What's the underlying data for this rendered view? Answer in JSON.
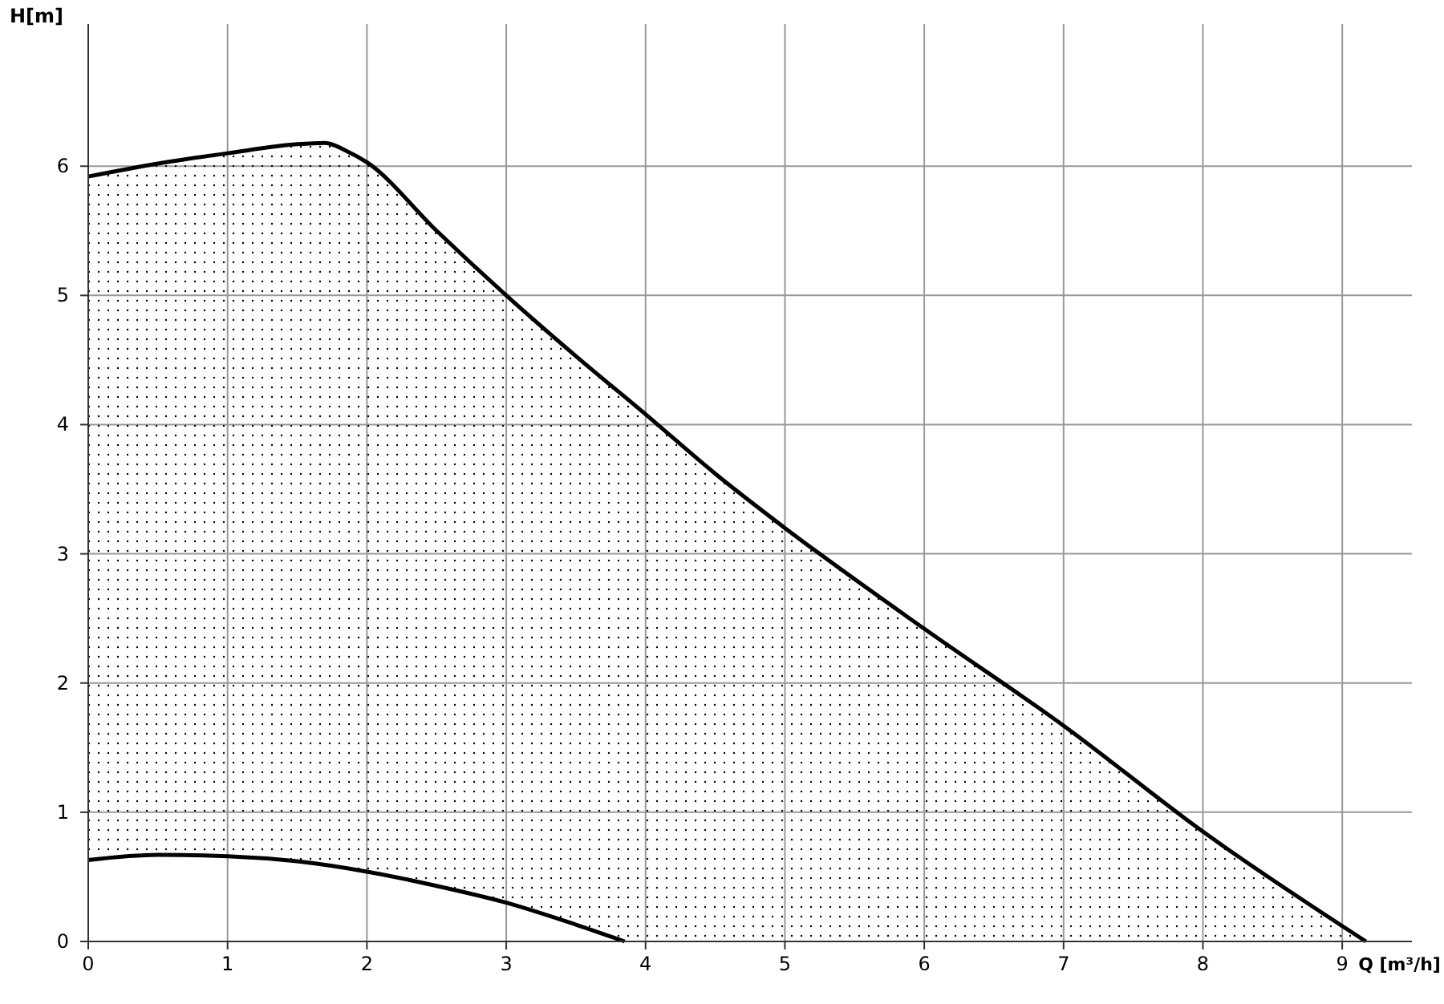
{
  "chart_data": {
    "type": "line",
    "xlabel": "Q [m³/h]",
    "ylabel": "H[m]",
    "xlim": [
      0,
      9.5
    ],
    "ylim": [
      0,
      7.1
    ],
    "xticks": [
      0,
      1,
      2,
      3,
      4,
      5,
      6,
      7,
      8,
      9
    ],
    "yticks": [
      0,
      1,
      2,
      3,
      4,
      5,
      6
    ],
    "grid": true,
    "series": [
      {
        "type": "area",
        "color": "#000000",
        "x": [
          0,
          0.5,
          1,
          1.5,
          1.7,
          1.85,
          2,
          2.5,
          3,
          3.5,
          4,
          4.5,
          5,
          6,
          7,
          8,
          9.17
        ],
        "values": [
          5.92,
          6.02,
          6.1,
          6.17,
          6.18,
          6.12,
          6.03,
          5.5,
          5.0,
          4.53,
          4.08,
          3.62,
          3.2,
          2.42,
          1.67,
          0.85,
          0
        ]
      },
      {
        "color": "#000000",
        "x": [
          0,
          0.5,
          1,
          1.5,
          2,
          2.5,
          3,
          3.5,
          3.85
        ],
        "values": [
          0.63,
          0.67,
          0.66,
          0.62,
          0.54,
          0.43,
          0.3,
          0.13,
          0
        ]
      }
    ]
  }
}
